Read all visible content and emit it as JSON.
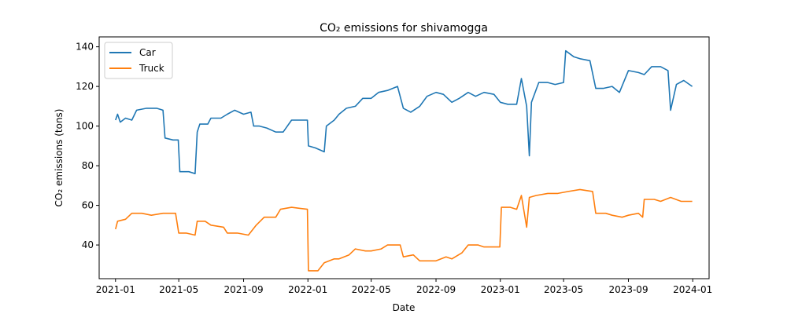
{
  "chart_data": {
    "type": "line",
    "title": "CO₂ emissions for shivamogga",
    "xlabel": "Date",
    "ylabel": "CO₂ emissions (tons)",
    "xlim": [
      "2020-12-01",
      "2024-02-01"
    ],
    "ylim": [
      23,
      145
    ],
    "x_ticks": [
      "2021-01",
      "2021-05",
      "2021-09",
      "2022-01",
      "2022-05",
      "2022-09",
      "2023-01",
      "2023-05",
      "2023-09",
      "2024-01"
    ],
    "y_ticks": [
      40,
      60,
      80,
      100,
      120,
      140
    ],
    "grid": false,
    "legend_position": "top-left",
    "series": [
      {
        "name": "Car",
        "color": "#1f77b4",
        "points": [
          [
            "2021-01-01",
            103
          ],
          [
            "2021-01-05",
            106
          ],
          [
            "2021-01-10",
            102
          ],
          [
            "2021-01-20",
            104
          ],
          [
            "2021-02-01",
            103
          ],
          [
            "2021-02-10",
            108
          ],
          [
            "2021-03-01",
            109
          ],
          [
            "2021-03-20",
            109
          ],
          [
            "2021-04-01",
            108
          ],
          [
            "2021-04-05",
            94
          ],
          [
            "2021-04-20",
            93
          ],
          [
            "2021-04-30",
            93
          ],
          [
            "2021-05-03",
            77
          ],
          [
            "2021-05-20",
            77
          ],
          [
            "2021-06-01",
            76
          ],
          [
            "2021-06-05",
            97
          ],
          [
            "2021-06-10",
            101
          ],
          [
            "2021-06-25",
            101
          ],
          [
            "2021-07-01",
            104
          ],
          [
            "2021-07-20",
            104
          ],
          [
            "2021-08-01",
            106
          ],
          [
            "2021-08-15",
            108
          ],
          [
            "2021-09-01",
            106
          ],
          [
            "2021-09-15",
            107
          ],
          [
            "2021-09-20",
            100
          ],
          [
            "2021-10-01",
            100
          ],
          [
            "2021-10-15",
            99
          ],
          [
            "2021-11-01",
            97
          ],
          [
            "2021-11-15",
            97
          ],
          [
            "2021-12-01",
            103
          ],
          [
            "2021-12-31",
            103
          ],
          [
            "2022-01-02",
            90
          ],
          [
            "2022-01-15",
            89
          ],
          [
            "2022-02-01",
            87
          ],
          [
            "2022-02-05",
            100
          ],
          [
            "2022-02-20",
            103
          ],
          [
            "2022-03-01",
            106
          ],
          [
            "2022-03-15",
            109
          ],
          [
            "2022-04-01",
            110
          ],
          [
            "2022-04-15",
            114
          ],
          [
            "2022-05-01",
            114
          ],
          [
            "2022-05-15",
            117
          ],
          [
            "2022-06-01",
            118
          ],
          [
            "2022-06-20",
            120
          ],
          [
            "2022-07-01",
            109
          ],
          [
            "2022-07-15",
            107
          ],
          [
            "2022-08-01",
            110
          ],
          [
            "2022-08-15",
            115
          ],
          [
            "2022-09-01",
            117
          ],
          [
            "2022-09-15",
            116
          ],
          [
            "2022-10-01",
            112
          ],
          [
            "2022-10-15",
            114
          ],
          [
            "2022-11-01",
            117
          ],
          [
            "2022-11-15",
            115
          ],
          [
            "2022-12-01",
            117
          ],
          [
            "2022-12-20",
            116
          ],
          [
            "2023-01-01",
            112
          ],
          [
            "2023-01-15",
            111
          ],
          [
            "2023-02-01",
            111
          ],
          [
            "2023-02-10",
            124
          ],
          [
            "2023-02-20",
            110
          ],
          [
            "2023-02-25",
            85
          ],
          [
            "2023-03-01",
            112
          ],
          [
            "2023-03-15",
            122
          ],
          [
            "2023-04-01",
            122
          ],
          [
            "2023-04-15",
            121
          ],
          [
            "2023-05-01",
            122
          ],
          [
            "2023-05-05",
            138
          ],
          [
            "2023-05-20",
            135
          ],
          [
            "2023-06-01",
            134
          ],
          [
            "2023-06-20",
            133
          ],
          [
            "2023-07-01",
            119
          ],
          [
            "2023-07-15",
            119
          ],
          [
            "2023-08-01",
            120
          ],
          [
            "2023-08-15",
            117
          ],
          [
            "2023-09-01",
            128
          ],
          [
            "2023-09-20",
            127
          ],
          [
            "2023-10-01",
            126
          ],
          [
            "2023-10-15",
            130
          ],
          [
            "2023-11-01",
            130
          ],
          [
            "2023-11-15",
            128
          ],
          [
            "2023-11-20",
            108
          ],
          [
            "2023-12-01",
            121
          ],
          [
            "2023-12-15",
            123
          ],
          [
            "2023-12-31",
            120
          ]
        ]
      },
      {
        "name": "Truck",
        "color": "#ff7f0e",
        "points": [
          [
            "2021-01-01",
            48
          ],
          [
            "2021-01-05",
            52
          ],
          [
            "2021-01-20",
            53
          ],
          [
            "2021-02-01",
            56
          ],
          [
            "2021-02-20",
            56
          ],
          [
            "2021-03-10",
            55
          ],
          [
            "2021-04-01",
            56
          ],
          [
            "2021-04-25",
            56
          ],
          [
            "2021-05-01",
            46
          ],
          [
            "2021-05-15",
            46
          ],
          [
            "2021-06-01",
            45
          ],
          [
            "2021-06-05",
            52
          ],
          [
            "2021-06-20",
            52
          ],
          [
            "2021-07-01",
            50
          ],
          [
            "2021-07-25",
            49
          ],
          [
            "2021-08-01",
            46
          ],
          [
            "2021-08-20",
            46
          ],
          [
            "2021-09-10",
            45
          ],
          [
            "2021-09-25",
            50
          ],
          [
            "2021-10-10",
            54
          ],
          [
            "2021-11-01",
            54
          ],
          [
            "2021-11-10",
            58
          ],
          [
            "2021-12-01",
            59
          ],
          [
            "2021-12-31",
            58
          ],
          [
            "2022-01-02",
            27
          ],
          [
            "2022-01-20",
            27
          ],
          [
            "2022-02-01",
            31
          ],
          [
            "2022-02-20",
            33
          ],
          [
            "2022-03-01",
            33
          ],
          [
            "2022-03-20",
            35
          ],
          [
            "2022-04-01",
            38
          ],
          [
            "2022-04-20",
            37
          ],
          [
            "2022-05-01",
            37
          ],
          [
            "2022-05-20",
            38
          ],
          [
            "2022-06-01",
            40
          ],
          [
            "2022-06-25",
            40
          ],
          [
            "2022-07-01",
            34
          ],
          [
            "2022-07-20",
            35
          ],
          [
            "2022-08-01",
            32
          ],
          [
            "2022-08-20",
            32
          ],
          [
            "2022-09-01",
            32
          ],
          [
            "2022-09-20",
            34
          ],
          [
            "2022-10-01",
            33
          ],
          [
            "2022-10-20",
            36
          ],
          [
            "2022-11-01",
            40
          ],
          [
            "2022-11-20",
            40
          ],
          [
            "2022-12-01",
            39
          ],
          [
            "2022-12-31",
            39
          ],
          [
            "2023-01-03",
            59
          ],
          [
            "2023-01-20",
            59
          ],
          [
            "2023-02-01",
            58
          ],
          [
            "2023-02-10",
            65
          ],
          [
            "2023-02-20",
            49
          ],
          [
            "2023-02-25",
            64
          ],
          [
            "2023-03-10",
            65
          ],
          [
            "2023-04-01",
            66
          ],
          [
            "2023-04-20",
            66
          ],
          [
            "2023-05-10",
            67
          ],
          [
            "2023-06-01",
            68
          ],
          [
            "2023-06-25",
            67
          ],
          [
            "2023-07-01",
            56
          ],
          [
            "2023-07-20",
            56
          ],
          [
            "2023-08-01",
            55
          ],
          [
            "2023-08-20",
            54
          ],
          [
            "2023-09-01",
            55
          ],
          [
            "2023-09-20",
            56
          ],
          [
            "2023-09-28",
            54
          ],
          [
            "2023-10-01",
            63
          ],
          [
            "2023-10-20",
            63
          ],
          [
            "2023-11-01",
            62
          ],
          [
            "2023-11-20",
            64
          ],
          [
            "2023-12-10",
            62
          ],
          [
            "2023-12-31",
            62
          ]
        ]
      }
    ]
  }
}
